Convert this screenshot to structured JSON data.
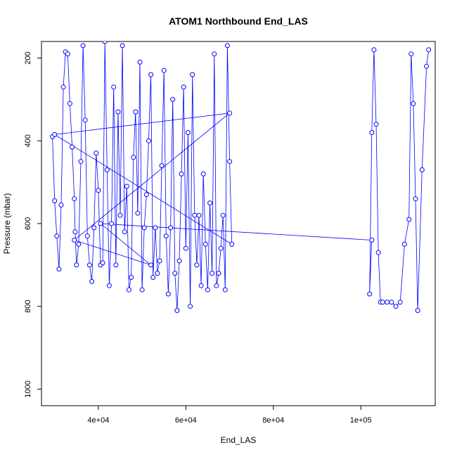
{
  "chart_data": {
    "type": "scatter",
    "title": "ATOM1 Northbound End_LAS",
    "xlabel": "End_LAS",
    "ylabel": "Pressure (mbar)",
    "xlim": [
      27000,
      117000
    ],
    "ylim": [
      1040,
      160
    ],
    "y_reversed": true,
    "grid": false,
    "legend": "none",
    "line_color": "#0000ff",
    "marker": "open-circle",
    "x_ticks": [
      {
        "value": 40000,
        "label": "4e+04"
      },
      {
        "value": 60000,
        "label": "6e+04"
      },
      {
        "value": 80000,
        "label": "8e+04"
      },
      {
        "value": 100000,
        "label": "1e+05"
      }
    ],
    "y_ticks": [
      {
        "value": 200,
        "label": "200"
      },
      {
        "value": 400,
        "label": "400"
      },
      {
        "value": 600,
        "label": "600"
      },
      {
        "value": 800,
        "label": "800"
      },
      {
        "value": 1000,
        "label": "1000"
      }
    ],
    "series": [
      {
        "x": [
          29500,
          30000,
          30500,
          31000,
          31500,
          32000,
          32500,
          33000,
          33500,
          34000,
          34500,
          34700,
          35000,
          35500,
          36000,
          36500,
          37000,
          37500,
          38000,
          38500,
          39000,
          39500,
          40000,
          40500,
          41000,
          41500,
          42000,
          42500,
          43000,
          43500,
          44000,
          44500,
          45000,
          45500,
          46000,
          46500,
          47000,
          47500,
          48000,
          48500,
          49000,
          49500,
          50000,
          50500,
          51000,
          51500,
          52000,
          52500,
          53000,
          53500,
          54000,
          54500,
          55000,
          55500,
          56000,
          56500,
          57000,
          57500,
          58000,
          58500,
          59000,
          59500,
          60000,
          60500,
          61000,
          61500,
          62000,
          62500,
          63000,
          63500,
          64000,
          64500,
          65000,
          65500,
          66000,
          66500,
          67000,
          67500,
          68000,
          68500,
          69000,
          69500,
          70000,
          70500,
          30000,
          70000,
          34500,
          52000,
          40500,
          102500,
          102000,
          102500,
          103000,
          103500,
          104000,
          104500,
          105000,
          106000,
          107000,
          108000,
          109000,
          110000,
          111000,
          111500,
          112000,
          112500,
          113000,
          114000,
          115000,
          115500
        ],
        "y": [
          390,
          545,
          630,
          710,
          555,
          270,
          185,
          190,
          310,
          415,
          540,
          620,
          700,
          650,
          450,
          170,
          350,
          630,
          700,
          740,
          610,
          430,
          520,
          700,
          695,
          160,
          470,
          750,
          600,
          270,
          700,
          330,
          580,
          170,
          620,
          510,
          760,
          730,
          440,
          330,
          575,
          210,
          760,
          610,
          530,
          400,
          240,
          730,
          610,
          720,
          690,
          460,
          230,
          630,
          770,
          610,
          300,
          720,
          810,
          690,
          480,
          270,
          660,
          380,
          800,
          240,
          580,
          700,
          580,
          750,
          480,
          650,
          760,
          550,
          720,
          190,
          750,
          720,
          660,
          580,
          760,
          170,
          450,
          650,
          385,
          333,
          640,
          700,
          600,
          640,
          770,
          380,
          180,
          360,
          670,
          790,
          790,
          790,
          790,
          800,
          790,
          650,
          590,
          190,
          310,
          540,
          810,
          470,
          220,
          180
        ]
      }
    ]
  }
}
